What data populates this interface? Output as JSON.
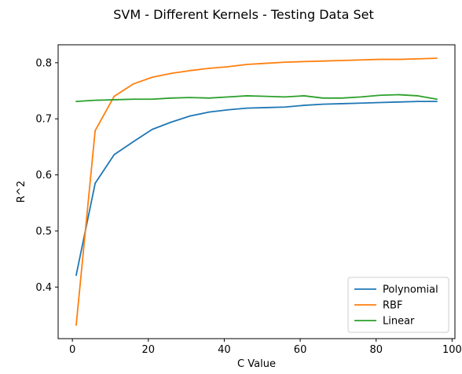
{
  "chart_data": {
    "type": "line",
    "title": "SVM - Different Kernels - Testing Data Set",
    "xlabel": "C Value",
    "ylabel": "R^2",
    "xlim": [
      -3.75,
      100.75
    ],
    "ylim": [
      0.308,
      0.832
    ],
    "xticks": [
      0,
      20,
      40,
      60,
      80,
      100
    ],
    "yticks": [
      0.4,
      0.5,
      0.6,
      0.7,
      0.8
    ],
    "ytick_labels": [
      "0.4",
      "0.5",
      "0.6",
      "0.7",
      "0.8"
    ],
    "grid": false,
    "legend_position": "lower-right",
    "x": [
      1,
      6,
      11,
      16,
      21,
      26,
      31,
      36,
      41,
      46,
      51,
      56,
      61,
      66,
      71,
      76,
      81,
      86,
      91,
      96
    ],
    "series": [
      {
        "name": "Polynomial",
        "color": "#1f77b4",
        "values": [
          0.421,
          0.585,
          0.636,
          0.659,
          0.681,
          0.694,
          0.705,
          0.712,
          0.716,
          0.719,
          0.72,
          0.721,
          0.724,
          0.726,
          0.727,
          0.728,
          0.729,
          0.73,
          0.731,
          0.731
        ]
      },
      {
        "name": "RBF",
        "color": "#ff7f0e",
        "values": [
          0.332,
          0.679,
          0.74,
          0.762,
          0.774,
          0.781,
          0.786,
          0.79,
          0.793,
          0.797,
          0.799,
          0.801,
          0.802,
          0.803,
          0.804,
          0.805,
          0.806,
          0.806,
          0.807,
          0.808
        ]
      },
      {
        "name": "Linear",
        "color": "#2ca02c",
        "values": [
          0.731,
          0.733,
          0.734,
          0.735,
          0.735,
          0.737,
          0.738,
          0.737,
          0.739,
          0.741,
          0.74,
          0.739,
          0.741,
          0.737,
          0.737,
          0.739,
          0.742,
          0.743,
          0.741,
          0.735
        ]
      }
    ]
  }
}
